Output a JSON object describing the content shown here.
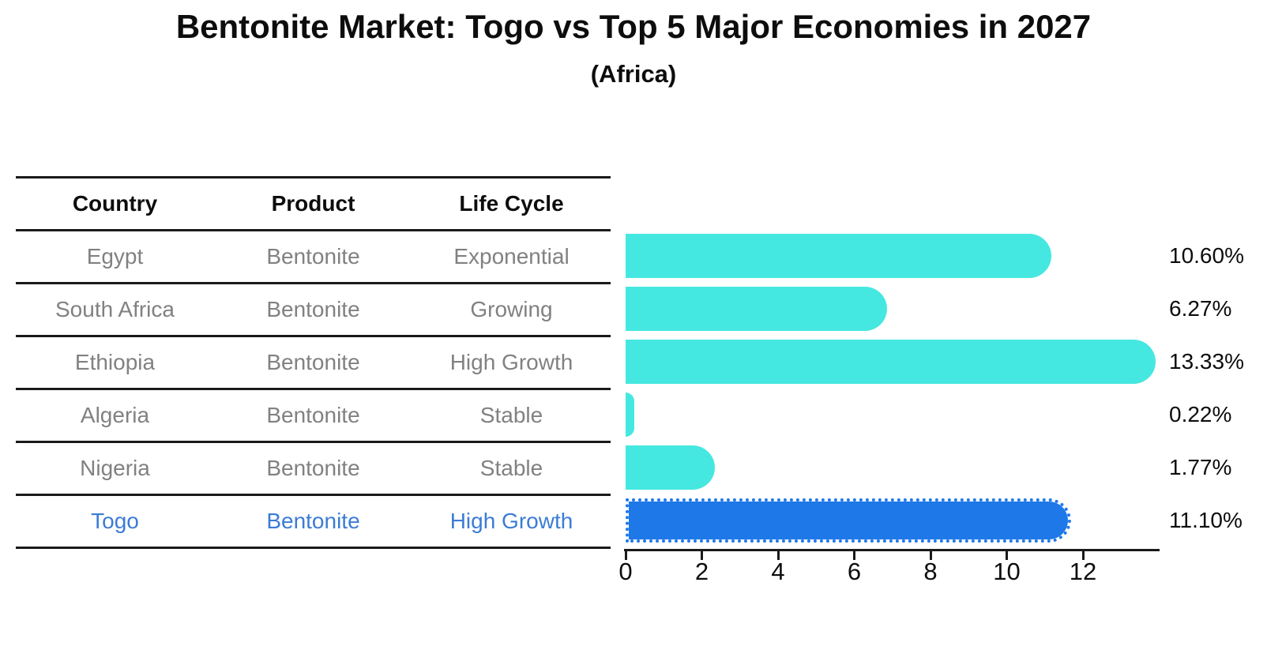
{
  "title": "Bentonite Market: Togo vs Top 5 Major Economies in 2027",
  "subtitle": "(Africa)",
  "table": {
    "headers": [
      "Country",
      "Product",
      "Life Cycle"
    ],
    "rows": [
      {
        "country": "Egypt",
        "product": "Bentonite",
        "life_cycle": "Exponential"
      },
      {
        "country": "South Africa",
        "product": "Bentonite",
        "life_cycle": "Growing"
      },
      {
        "country": "Ethiopia",
        "product": "Bentonite",
        "life_cycle": "High Growth"
      },
      {
        "country": "Algeria",
        "product": "Bentonite",
        "life_cycle": "Stable"
      },
      {
        "country": "Nigeria",
        "product": "Bentonite",
        "life_cycle": "Stable"
      },
      {
        "country": "Togo",
        "product": "Bentonite",
        "life_cycle": "High Growth"
      }
    ],
    "highlight_row": "Togo"
  },
  "chart_data": {
    "type": "bar",
    "orientation": "horizontal",
    "title": "Bentonite Market: Togo vs Top 5 Major Economies in 2027",
    "subtitle": "(Africa)",
    "categories": [
      "Egypt",
      "South Africa",
      "Ethiopia",
      "Algeria",
      "Nigeria",
      "Togo"
    ],
    "values": [
      10.6,
      6.27,
      13.33,
      0.22,
      1.77,
      11.1
    ],
    "value_labels": [
      "10.60%",
      "6.27%",
      "13.33%",
      "0.22%",
      "1.77%",
      "11.10%"
    ],
    "x_ticks": [
      0,
      2,
      4,
      6,
      8,
      10,
      12
    ],
    "xlim": [
      0,
      14
    ],
    "highlight_index": 5,
    "grid": false,
    "legend": false
  },
  "colors": {
    "bar": "#45e8e0",
    "highlight_bar": "#1e78e8",
    "highlight_text": "#3b7cd5",
    "row_text": "#818181",
    "header_text": "#0d0d0d",
    "axis": "#1a1a1a"
  }
}
